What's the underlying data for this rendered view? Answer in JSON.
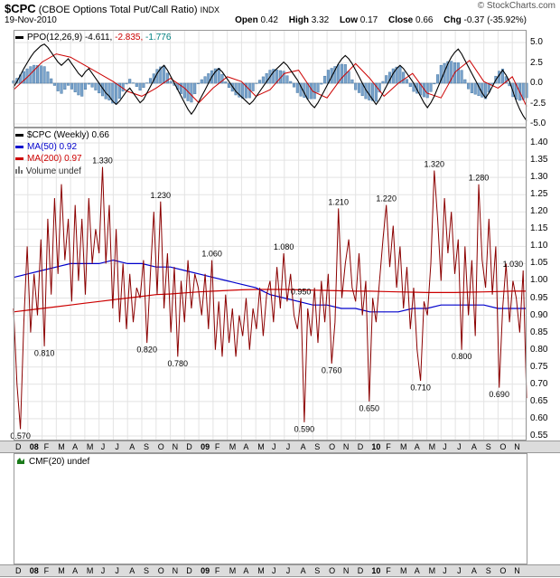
{
  "header": {
    "symbol": "$CPC",
    "title": "(CBOE Options Total Put/Call Ratio)",
    "exchange": "INDX",
    "copyright": "© StockCharts.com",
    "date": "19-Nov-2010",
    "quote": [
      {
        "label": "Open",
        "value": "0.42"
      },
      {
        "label": "High",
        "value": "3.32"
      },
      {
        "label": "Low",
        "value": "0.17"
      },
      {
        "label": "Close",
        "value": "0.66"
      },
      {
        "label": "Chg",
        "value": "-0.37 (-35.92%)"
      }
    ]
  },
  "legends": {
    "ppo": {
      "name": "PPO(12,26,9)",
      "marker_color": "#000000",
      "values": [
        {
          "text": "-4.611,",
          "color": "#000000"
        },
        {
          "text": "-2.835,",
          "color": "#cc0000"
        },
        {
          "text": "-1.776",
          "color": "#008080"
        }
      ]
    },
    "price_rows": [
      {
        "label": "$CPC (Weekly) 0.66",
        "color": "#000000",
        "marker": "#000000"
      },
      {
        "label": "MA(50) 0.92",
        "color": "#0000cc",
        "marker": "#0000cc"
      },
      {
        "label": "MA(200) 0.97",
        "color": "#cc0000",
        "marker": "#cc0000"
      }
    ],
    "volume": {
      "label": "Volume undef",
      "color": "#333333"
    },
    "cmf": {
      "label": "CMF(20) undef",
      "color": "#000000"
    }
  },
  "chart_data": {
    "type": "line",
    "title": "$CPC (CBOE Options Total Put/Call Ratio) INDX",
    "date": "19-Nov-2010",
    "frequency": "weekly",
    "grid": true,
    "legend_position": "top-left",
    "colors": {
      "price_line": "#8b0000",
      "ma50": "#0000cc",
      "ma200": "#cc0000",
      "ppo_line": "#000000",
      "ppo_signal": "#cc0000",
      "histogram_fill": "#7aa3cc",
      "histogram_edge": "#4a7ba6",
      "grid": "#e3e3e3",
      "panel_border": "#999999",
      "axis_strip_bg": "#dcdcdc"
    },
    "x_axis": {
      "start": "Dec-2007",
      "end": "Nov-2010",
      "labels": [
        "D",
        "08",
        "F",
        "M",
        "A",
        "M",
        "J",
        "J",
        "A",
        "S",
        "O",
        "N",
        "D",
        "09",
        "F",
        "M",
        "A",
        "M",
        "J",
        "J",
        "A",
        "S",
        "O",
        "N",
        "D",
        "10",
        "F",
        "M",
        "A",
        "M",
        "J",
        "J",
        "A",
        "S",
        "O",
        "N"
      ],
      "year_indices": [
        1,
        13,
        25
      ]
    },
    "panels": {
      "ppo": {
        "name": "PPO(12,26,9)",
        "ylim": [
          -6.2,
          6.2
        ],
        "yticks": [
          5.0,
          2.5,
          0.0,
          -2.5,
          -5.0
        ],
        "last_values": {
          "ppo": -4.611,
          "signal": -2.835,
          "histogram": -1.776
        },
        "ppo_weekly": [
          -0.5,
          0.2,
          1.0,
          1.8,
          2.5,
          3.2,
          3.8,
          4.2,
          4.6,
          4.8,
          4.4,
          3.8,
          3.2,
          2.6,
          2.2,
          2.6,
          3.0,
          2.4,
          1.8,
          1.2,
          0.8,
          1.4,
          1.8,
          1.2,
          0.6,
          0.0,
          -0.6,
          -1.2,
          -1.6,
          -2.2,
          -2.6,
          -2.2,
          -1.6,
          -1.0,
          -0.6,
          -1.2,
          -1.8,
          -2.4,
          -2.0,
          -1.2,
          -0.4,
          0.4,
          1.2,
          1.8,
          2.2,
          1.6,
          0.8,
          0.0,
          -0.8,
          -1.6,
          -2.4,
          -3.2,
          -3.8,
          -3.2,
          -2.4,
          -1.6,
          -0.8,
          0.0,
          0.8,
          1.4,
          1.8,
          1.4,
          0.8,
          0.2,
          -0.4,
          -1.0,
          -1.4,
          -1.8,
          -2.2,
          -2.6,
          -2.2,
          -1.6,
          -1.0,
          -0.4,
          0.2,
          0.8,
          1.4,
          1.8,
          2.2,
          2.6,
          2.2,
          1.6,
          1.0,
          0.4,
          -0.4,
          -1.2,
          -2.0,
          -2.6,
          -3.0,
          -2.4,
          -1.6,
          -0.8,
          0.0,
          0.8,
          1.6,
          2.4,
          3.0,
          3.4,
          3.0,
          2.4,
          1.6,
          0.8,
          0.0,
          -0.8,
          -1.4,
          -2.0,
          -2.6,
          -2.0,
          -1.2,
          -0.4,
          0.4,
          1.2,
          1.8,
          2.2,
          1.8,
          1.2,
          0.6,
          0.0,
          -0.8,
          -1.6,
          -2.4,
          -3.0,
          -2.4,
          -1.6,
          -0.6,
          0.4,
          1.4,
          2.4,
          3.2,
          3.8,
          4.2,
          3.6,
          2.8,
          2.0,
          1.2,
          0.4,
          -0.4,
          -1.2,
          -1.8,
          -1.2,
          -0.4,
          0.4,
          1.0,
          1.6,
          1.0,
          0.2,
          -1.0,
          -2.2,
          -3.2,
          -4.0,
          -4.611
        ],
        "signal_monthly": [
          -0.8,
          0.8,
          2.6,
          3.6,
          3.2,
          2.2,
          1.2,
          0.2,
          -1.0,
          -1.6,
          -0.6,
          0.6,
          -0.6,
          -2.4,
          -0.6,
          0.8,
          0.2,
          -1.6,
          -0.8,
          1.2,
          1.6,
          -1.0,
          -1.8,
          0.6,
          2.4,
          0.6,
          -1.6,
          0.0,
          1.2,
          -1.2,
          -1.8,
          1.4,
          2.8,
          0.2,
          -0.6,
          0.8,
          -2.835
        ]
      },
      "price": {
        "name": "$CPC Weekly",
        "ylim": [
          0.55,
          1.4
        ],
        "ytick_step": 0.05,
        "last_close": 0.66,
        "ma50_last": 0.92,
        "ma200_last": 0.97,
        "volume": "undef",
        "cpc_weekly": [
          0.92,
          0.7,
          0.57,
          0.88,
          1.1,
          0.85,
          1.02,
          0.9,
          1.12,
          0.81,
          1.18,
          0.96,
          1.24,
          1.02,
          1.28,
          1.06,
          1.18,
          0.94,
          1.22,
          1.0,
          1.18,
          0.96,
          1.24,
          1.05,
          1.15,
          1.08,
          1.33,
          1.05,
          1.22,
          0.92,
          1.15,
          0.88,
          1.05,
          0.86,
          1.02,
          0.88,
          0.98,
          0.95,
          1.06,
          0.82,
          1.02,
          1.2,
          0.96,
          1.23,
          0.92,
          1.08,
          0.85,
          1.04,
          0.78,
          1.0,
          0.88,
          1.06,
          0.92,
          1.02,
          0.98,
          0.9,
          1.02,
          0.86,
          1.06,
          0.8,
          0.94,
          0.78,
          0.96,
          0.82,
          0.92,
          0.78,
          0.9,
          0.84,
          0.95,
          0.8,
          0.92,
          0.86,
          0.98,
          0.84,
          0.96,
          1.0,
          0.88,
          1.04,
          0.92,
          1.08,
          0.94,
          1.02,
          0.9,
          0.86,
          0.95,
          0.59,
          0.92,
          0.84,
          0.98,
          0.82,
          1.0,
          0.88,
          1.02,
          0.76,
          0.88,
          1.21,
          0.95,
          1.05,
          1.12,
          0.98,
          0.94,
          1.08,
          0.9,
          1.0,
          0.65,
          0.95,
          0.88,
          1.0,
          1.12,
          1.22,
          1.04,
          1.16,
          0.98,
          1.1,
          0.92,
          1.04,
          0.86,
          0.98,
          0.8,
          0.71,
          0.94,
          0.9,
          1.05,
          1.32,
          1.18,
          1.0,
          1.24,
          1.08,
          1.2,
          1.02,
          1.12,
          0.8,
          1.1,
          0.9,
          1.06,
          0.84,
          1.28,
          1.06,
          0.98,
          1.18,
          0.96,
          1.1,
          0.69,
          0.92,
          1.05,
          0.88,
          1.0,
          0.95,
          0.85,
          1.03,
          0.66
        ],
        "ma50_monthly": [
          1.01,
          1.02,
          1.03,
          1.04,
          1.05,
          1.05,
          1.05,
          1.06,
          1.05,
          1.05,
          1.04,
          1.04,
          1.03,
          1.02,
          1.01,
          1.0,
          0.99,
          0.98,
          0.96,
          0.95,
          0.94,
          0.93,
          0.93,
          0.92,
          0.92,
          0.91,
          0.91,
          0.91,
          0.92,
          0.92,
          0.93,
          0.93,
          0.93,
          0.93,
          0.92,
          0.92,
          0.92
        ],
        "ma200_monthly": [
          0.91,
          0.915,
          0.92,
          0.925,
          0.93,
          0.935,
          0.94,
          0.945,
          0.95,
          0.955,
          0.96,
          0.962,
          0.965,
          0.968,
          0.97,
          0.972,
          0.974,
          0.975,
          0.975,
          0.975,
          0.974,
          0.973,
          0.972,
          0.971,
          0.97,
          0.97,
          0.969,
          0.968,
          0.967,
          0.966,
          0.966,
          0.966,
          0.967,
          0.968,
          0.969,
          0.97,
          0.97
        ],
        "annotations": [
          {
            "text": "0.570",
            "week": 2,
            "side": "below"
          },
          {
            "text": "0.810",
            "week": 9,
            "side": "below"
          },
          {
            "text": "1.330",
            "week": 26,
            "side": "above"
          },
          {
            "text": "0.820",
            "week": 39,
            "side": "below"
          },
          {
            "text": "1.230",
            "week": 43,
            "side": "above"
          },
          {
            "text": "0.780",
            "week": 48,
            "side": "below"
          },
          {
            "text": "1.060",
            "week": 58,
            "side": "above"
          },
          {
            "text": "1.080",
            "week": 79,
            "side": "above"
          },
          {
            "text": "0.950",
            "week": 84,
            "side": "above"
          },
          {
            "text": "0.590",
            "week": 85,
            "side": "below"
          },
          {
            "text": "0.760",
            "week": 93,
            "side": "below"
          },
          {
            "text": "1.210",
            "week": 95,
            "side": "above"
          },
          {
            "text": "0.650",
            "week": 104,
            "side": "below"
          },
          {
            "text": "1.220",
            "week": 109,
            "side": "above"
          },
          {
            "text": "0.710",
            "week": 119,
            "side": "below"
          },
          {
            "text": "1.320",
            "week": 123,
            "side": "above"
          },
          {
            "text": "0.800",
            "week": 131,
            "side": "below"
          },
          {
            "text": "1.280",
            "week": 136,
            "side": "above"
          },
          {
            "text": "0.690",
            "week": 142,
            "side": "below"
          },
          {
            "text": "1.030",
            "week": 149,
            "side": "above"
          }
        ]
      },
      "cmf": {
        "name": "CMF(20)",
        "value": "undef"
      }
    }
  }
}
